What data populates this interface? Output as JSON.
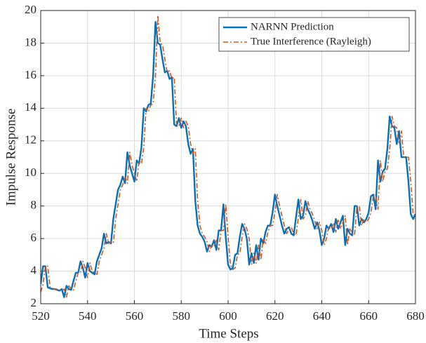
{
  "chart_data": {
    "type": "line",
    "xlabel": "Time Steps",
    "ylabel": "Impulse Response",
    "x": [
      520,
      521,
      522,
      523,
      524,
      525,
      526,
      527,
      528,
      529,
      530,
      531,
      532,
      533,
      534,
      535,
      536,
      537,
      538,
      539,
      540,
      541,
      542,
      543,
      544,
      545,
      546,
      547,
      548,
      549,
      550,
      551,
      552,
      553,
      554,
      555,
      556,
      557,
      558,
      559,
      560,
      561,
      562,
      563,
      564,
      565,
      566,
      567,
      568,
      569,
      570,
      571,
      572,
      573,
      574,
      575,
      576,
      577,
      578,
      579,
      580,
      581,
      582,
      583,
      584,
      585,
      586,
      587,
      588,
      589,
      590,
      591,
      592,
      593,
      594,
      595,
      596,
      597,
      598,
      599,
      600,
      601,
      602,
      603,
      604,
      605,
      606,
      607,
      608,
      609,
      610,
      611,
      612,
      613,
      614,
      615,
      616,
      617,
      618,
      619,
      620,
      621,
      622,
      623,
      624,
      625,
      626,
      627,
      628,
      629,
      630,
      631,
      632,
      633,
      634,
      635,
      636,
      637,
      638,
      639,
      640,
      641,
      642,
      643,
      644,
      645,
      646,
      647,
      648,
      649,
      650,
      651,
      652,
      653,
      654,
      655,
      656,
      657,
      658,
      659,
      660,
      661,
      662,
      663,
      664,
      665,
      666,
      667,
      668,
      669,
      670,
      671,
      672,
      673,
      674,
      675,
      676,
      677,
      678,
      679,
      680
    ],
    "series": [
      {
        "name": "NARNN Prediction",
        "color": "#0072BD",
        "dash": "solid",
        "values": [
          3.2,
          4.3,
          4.3,
          3.0,
          2.95,
          2.9,
          2.9,
          2.85,
          2.8,
          2.9,
          2.4,
          3.1,
          2.9,
          2.85,
          3.4,
          3.9,
          3.9,
          4.6,
          4.2,
          3.6,
          4.5,
          4.0,
          3.9,
          3.8,
          4.6,
          5.0,
          5.4,
          6.3,
          5.7,
          5.8,
          5.7,
          7.2,
          8.1,
          9.0,
          9.3,
          9.8,
          9.4,
          11.3,
          10.5,
          10.0,
          9.5,
          10.8,
          10.6,
          11.6,
          14.0,
          13.8,
          14.2,
          14.3,
          16.0,
          19.3,
          18.0,
          17.9,
          17.0,
          16.2,
          16.3,
          15.8,
          15.9,
          13.0,
          12.9,
          13.4,
          12.8,
          13.2,
          12.9,
          11.8,
          11.2,
          11.5,
          8.3,
          6.8,
          6.3,
          6.1,
          5.8,
          5.2,
          5.6,
          5.5,
          5.9,
          5.3,
          6.5,
          6.5,
          8.1,
          6.1,
          4.4,
          4.1,
          4.2,
          5.0,
          5.1,
          6.1,
          6.9,
          6.6,
          6.0,
          4.4,
          5.1,
          4.5,
          5.6,
          4.7,
          6.0,
          5.7,
          6.4,
          6.8,
          6.8,
          7.6,
          8.7,
          8.0,
          7.4,
          6.8,
          6.3,
          6.6,
          6.7,
          6.3,
          6.2,
          7.3,
          8.4,
          7.2,
          7.4,
          8.3,
          7.8,
          7.5,
          7.1,
          6.6,
          7.0,
          6.5,
          5.6,
          6.0,
          6.8,
          6.6,
          6.9,
          6.4,
          7.2,
          6.6,
          7.0,
          7.4,
          5.6,
          6.6,
          6.3,
          6.2,
          8.0,
          8.0,
          6.8,
          7.2,
          7.0,
          7.2,
          7.6,
          8.6,
          8.7,
          7.8,
          10.8,
          9.5,
          10.1,
          10.3,
          11.5,
          13.5,
          12.9,
          12.8,
          11.8,
          12.6,
          11.0,
          11.0,
          11.0,
          9.5,
          7.5,
          7.2,
          7.5
        ]
      },
      {
        "name": "True Interference (Rayleigh)",
        "color": "#D95319",
        "dash": "dashdot",
        "values": [
          2.7,
          3.2,
          4.3,
          4.3,
          3.0,
          2.95,
          2.9,
          2.9,
          2.85,
          2.8,
          2.9,
          2.4,
          3.1,
          2.9,
          2.85,
          3.4,
          3.9,
          3.9,
          4.6,
          4.2,
          3.6,
          4.5,
          4.0,
          3.9,
          3.8,
          4.6,
          5.0,
          5.4,
          6.3,
          5.7,
          5.8,
          5.7,
          7.2,
          8.1,
          9.0,
          9.3,
          9.8,
          9.4,
          11.3,
          10.5,
          10.0,
          9.5,
          10.8,
          10.6,
          11.6,
          14.0,
          13.8,
          14.2,
          14.3,
          16.0,
          19.7,
          18.0,
          17.9,
          17.0,
          16.2,
          16.3,
          15.8,
          15.9,
          13.0,
          12.9,
          13.4,
          12.8,
          13.2,
          12.9,
          11.8,
          11.2,
          11.5,
          8.3,
          6.8,
          6.3,
          6.1,
          5.8,
          5.2,
          5.6,
          5.5,
          5.9,
          5.3,
          6.5,
          6.5,
          8.1,
          6.1,
          4.4,
          4.1,
          4.2,
          5.0,
          5.1,
          6.1,
          6.9,
          6.6,
          6.0,
          4.4,
          5.1,
          4.5,
          5.6,
          4.7,
          6.0,
          5.7,
          6.4,
          6.8,
          6.8,
          7.6,
          8.7,
          8.0,
          7.4,
          6.8,
          6.3,
          6.6,
          6.7,
          6.3,
          6.2,
          7.3,
          8.4,
          7.2,
          7.4,
          8.3,
          7.8,
          7.5,
          7.1,
          6.6,
          7.0,
          6.5,
          5.6,
          6.0,
          6.8,
          6.6,
          6.9,
          6.4,
          7.2,
          6.6,
          7.0,
          7.4,
          5.6,
          6.6,
          6.3,
          6.2,
          8.0,
          8.0,
          6.8,
          7.2,
          7.0,
          7.2,
          7.6,
          8.6,
          8.7,
          7.8,
          10.8,
          9.5,
          10.1,
          10.3,
          11.5,
          13.5,
          12.9,
          12.8,
          11.8,
          12.6,
          11.0,
          11.0,
          11.0,
          9.5,
          7.5,
          7.2
        ]
      }
    ],
    "xlim": [
      520,
      680
    ],
    "xticks": [
      520,
      540,
      560,
      580,
      600,
      620,
      640,
      660,
      680
    ],
    "ylim": [
      2,
      20
    ],
    "yticks": [
      2,
      4,
      6,
      8,
      10,
      12,
      14,
      16,
      18,
      20
    ],
    "grid": true,
    "legend": "top-right"
  }
}
